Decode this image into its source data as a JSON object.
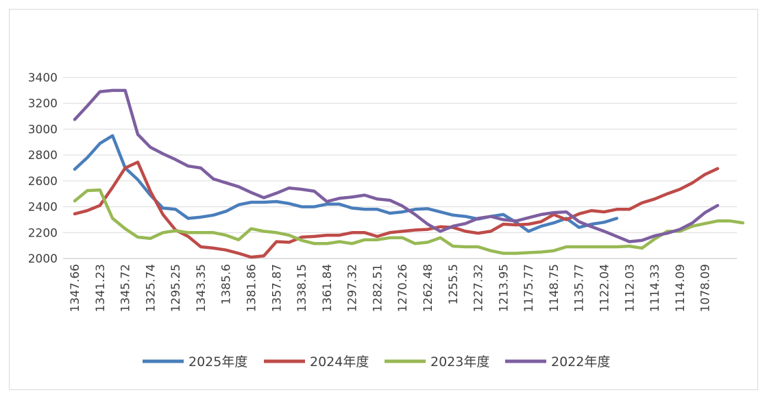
{
  "chart_data": {
    "type": "line",
    "title": "",
    "xlabel": "",
    "ylabel": "",
    "ylim": [
      2000,
      3400
    ],
    "y_ticks": [
      2000,
      2200,
      2400,
      2600,
      2800,
      3000,
      3200,
      3400
    ],
    "grid": "horizontal",
    "legend_position": "bottom",
    "x_tick_labels": [
      "1347.66",
      "1341.23",
      "1345.72",
      "1325.74",
      "1295.25",
      "1343.35",
      "1385.6",
      "1381.86",
      "1357.87",
      "1338.15",
      "1361.84",
      "1297.32",
      "1282.51",
      "1270.26",
      "1262.48",
      "1255.5",
      "1227.32",
      "1213.95",
      "1175.77",
      "1148.75",
      "1135.77",
      "1122.04",
      "1112.03",
      "1114.33",
      "1114.09",
      "1078.09"
    ],
    "series": [
      {
        "name": "2025年度",
        "color": "#4a7ebb",
        "values": [
          2690,
          2780,
          2890,
          2950,
          2700,
          2610,
          2490,
          2390,
          2380,
          2310,
          2320,
          2335,
          2365,
          2415,
          2435,
          2435,
          2440,
          2425,
          2400,
          2400,
          2420,
          2420,
          2390,
          2380,
          2380,
          2350,
          2360,
          2380,
          2385,
          2360,
          2335,
          2325,
          2305,
          2325,
          2340,
          2280,
          2210,
          2250,
          2275,
          2310,
          2240,
          2265,
          2280,
          2310
        ]
      },
      {
        "name": "2024年度",
        "color": "#be4b48",
        "values": [
          2345,
          2370,
          2410,
          2550,
          2700,
          2745,
          2520,
          2340,
          2220,
          2170,
          2090,
          2080,
          2065,
          2040,
          2010,
          2020,
          2130,
          2125,
          2165,
          2170,
          2180,
          2180,
          2200,
          2200,
          2170,
          2200,
          2210,
          2220,
          2225,
          2245,
          2240,
          2210,
          2195,
          2210,
          2265,
          2260,
          2265,
          2285,
          2340,
          2300,
          2345,
          2370,
          2360,
          2380,
          2380,
          2430,
          2460,
          2500,
          2535,
          2585,
          2650,
          2695
        ]
      },
      {
        "name": "2023年度",
        "color": "#98b954",
        "values": [
          2445,
          2525,
          2530,
          2310,
          2230,
          2165,
          2155,
          2200,
          2215,
          2200,
          2200,
          2200,
          2180,
          2145,
          2230,
          2210,
          2200,
          2180,
          2140,
          2115,
          2115,
          2130,
          2115,
          2145,
          2145,
          2160,
          2160,
          2115,
          2125,
          2160,
          2095,
          2090,
          2090,
          2060,
          2040,
          2040,
          2045,
          2050,
          2060,
          2090,
          2090,
          2090,
          2090,
          2090,
          2095,
          2080,
          2150,
          2210,
          2210,
          2250,
          2270,
          2290,
          2290,
          2275
        ]
      },
      {
        "name": "2022年度",
        "color": "#7d5fa0",
        "values": [
          3075,
          3180,
          3290,
          3300,
          3300,
          2960,
          2860,
          2810,
          2765,
          2715,
          2700,
          2615,
          2585,
          2555,
          2510,
          2470,
          2505,
          2545,
          2535,
          2520,
          2440,
          2465,
          2475,
          2490,
          2460,
          2450,
          2405,
          2340,
          2265,
          2210,
          2250,
          2270,
          2310,
          2325,
          2300,
          2290,
          2315,
          2340,
          2355,
          2360,
          2285,
          2245,
          2210,
          2170,
          2130,
          2140,
          2175,
          2195,
          2225,
          2275,
          2355,
          2410
        ]
      }
    ]
  },
  "legend": {
    "items": [
      {
        "label": "2025年度",
        "color": "#4a7ebb"
      },
      {
        "label": "2024年度",
        "color": "#be4b48"
      },
      {
        "label": "2023年度",
        "color": "#98b954"
      },
      {
        "label": "2022年度",
        "color": "#7d5fa0"
      }
    ]
  }
}
